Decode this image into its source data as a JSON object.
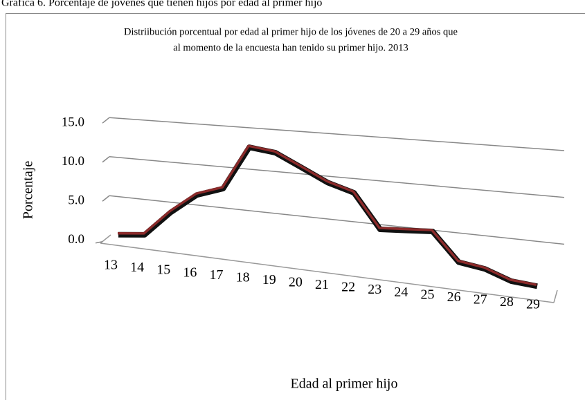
{
  "header": "Gráfica 6. Porcentaje de jóvenes que tienen hijos por edad al primer hijo",
  "chart_data": {
    "type": "line3d",
    "title": [
      "Distriibución porcentual por edad al primer  hijo de los jóvenes de 20 a 29 años que",
      "al momento de la encuesta han tenido su primer hijo.  2013"
    ],
    "x_label": "Edad al primer hijo",
    "y_label": "Porcentaje",
    "categories": [
      "13",
      "14",
      "15",
      "16",
      "17",
      "18",
      "19",
      "20",
      "21",
      "22",
      "23",
      "24",
      "25",
      "26",
      "27",
      "28",
      "29"
    ],
    "series": [
      {
        "name": "Porcentaje",
        "color": "#8b2a2a",
        "values": [
          0.3,
          0.7,
          3.9,
          6.4,
          7.5,
          12.8,
          12.4,
          10.9,
          9.4,
          8.5,
          4.6,
          4.8,
          5.0,
          1.9,
          1.5,
          0.5,
          0.3
        ]
      }
    ],
    "ylim": [
      0,
      15
    ],
    "yticks": [
      {
        "value": 0,
        "label": "0.0"
      },
      {
        "value": 5,
        "label": "5.0"
      },
      {
        "value": 10,
        "label": "10.0"
      },
      {
        "value": 15,
        "label": "15.0"
      }
    ],
    "grid": true
  }
}
